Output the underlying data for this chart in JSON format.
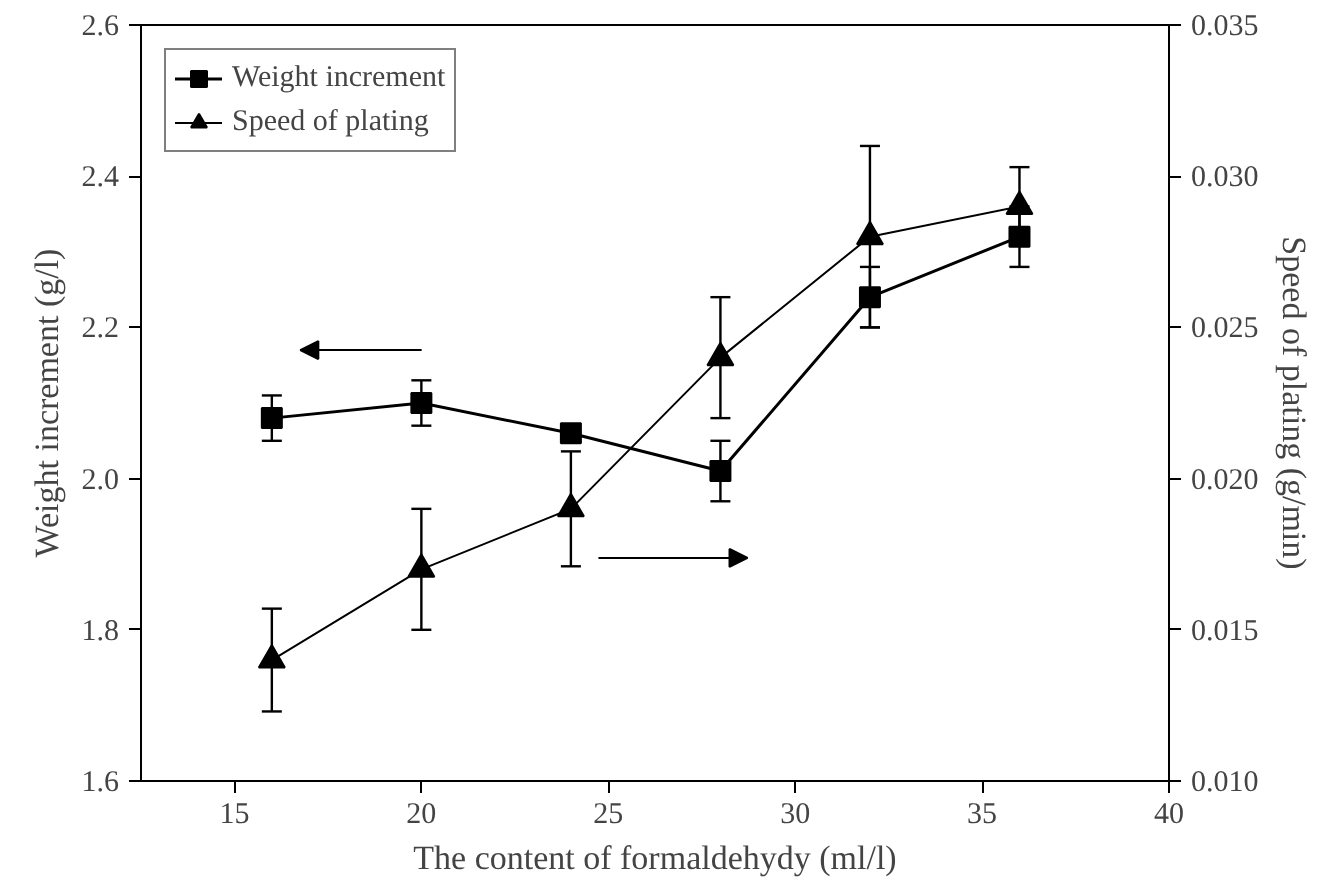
{
  "chart_data": {
    "type": "line",
    "xlabel": "The content of formaldehydy (ml/l)",
    "ylabel": "Weight increment (g/l)",
    "y2label": "Speed of plating (g/min)",
    "x": [
      16,
      20,
      24,
      28,
      32,
      36
    ],
    "series": [
      {
        "name": "Weight increment",
        "color": "#000000",
        "marker": "square",
        "values": [
          2.08,
          2.1,
          2.06,
          2.01,
          2.24,
          2.32
        ],
        "errors": [
          0.03,
          0.03,
          0.01,
          0.04,
          0.04,
          0.04
        ]
      },
      {
        "name": "Speed of plating",
        "color": "#000000",
        "marker": "triangle",
        "axis": "y2",
        "values": [
          0.014,
          0.017,
          0.019,
          0.024,
          0.028,
          0.029
        ],
        "errors": [
          0.0017,
          0.002,
          0.0019,
          0.002,
          0.003,
          0.0013
        ]
      }
    ],
    "xlim": [
      12.5,
      40
    ],
    "xticks": [
      15,
      20,
      25,
      30,
      35,
      40
    ],
    "ylim": [
      1.6,
      2.6
    ],
    "yticks": [
      {
        "value": 1.6,
        "label": "1.6"
      },
      {
        "value": 1.8,
        "label": "1.8"
      },
      {
        "value": 2.0,
        "label": "2.0"
      },
      {
        "value": 2.2,
        "label": "2.2"
      },
      {
        "value": 2.4,
        "label": "2.4"
      },
      {
        "value": 2.6,
        "label": "2.6"
      }
    ],
    "y2lim": [
      0.01,
      0.035
    ],
    "y2ticks": [
      {
        "value": 0.01,
        "label": "0.010"
      },
      {
        "value": 0.015,
        "label": "0.015"
      },
      {
        "value": 0.02,
        "label": "0.020"
      },
      {
        "value": 0.025,
        "label": "0.025"
      },
      {
        "value": 0.03,
        "label": "0.030"
      },
      {
        "value": 0.035,
        "label": "0.035"
      }
    ],
    "grid": false,
    "legend": "top left",
    "line_style": "solid"
  }
}
